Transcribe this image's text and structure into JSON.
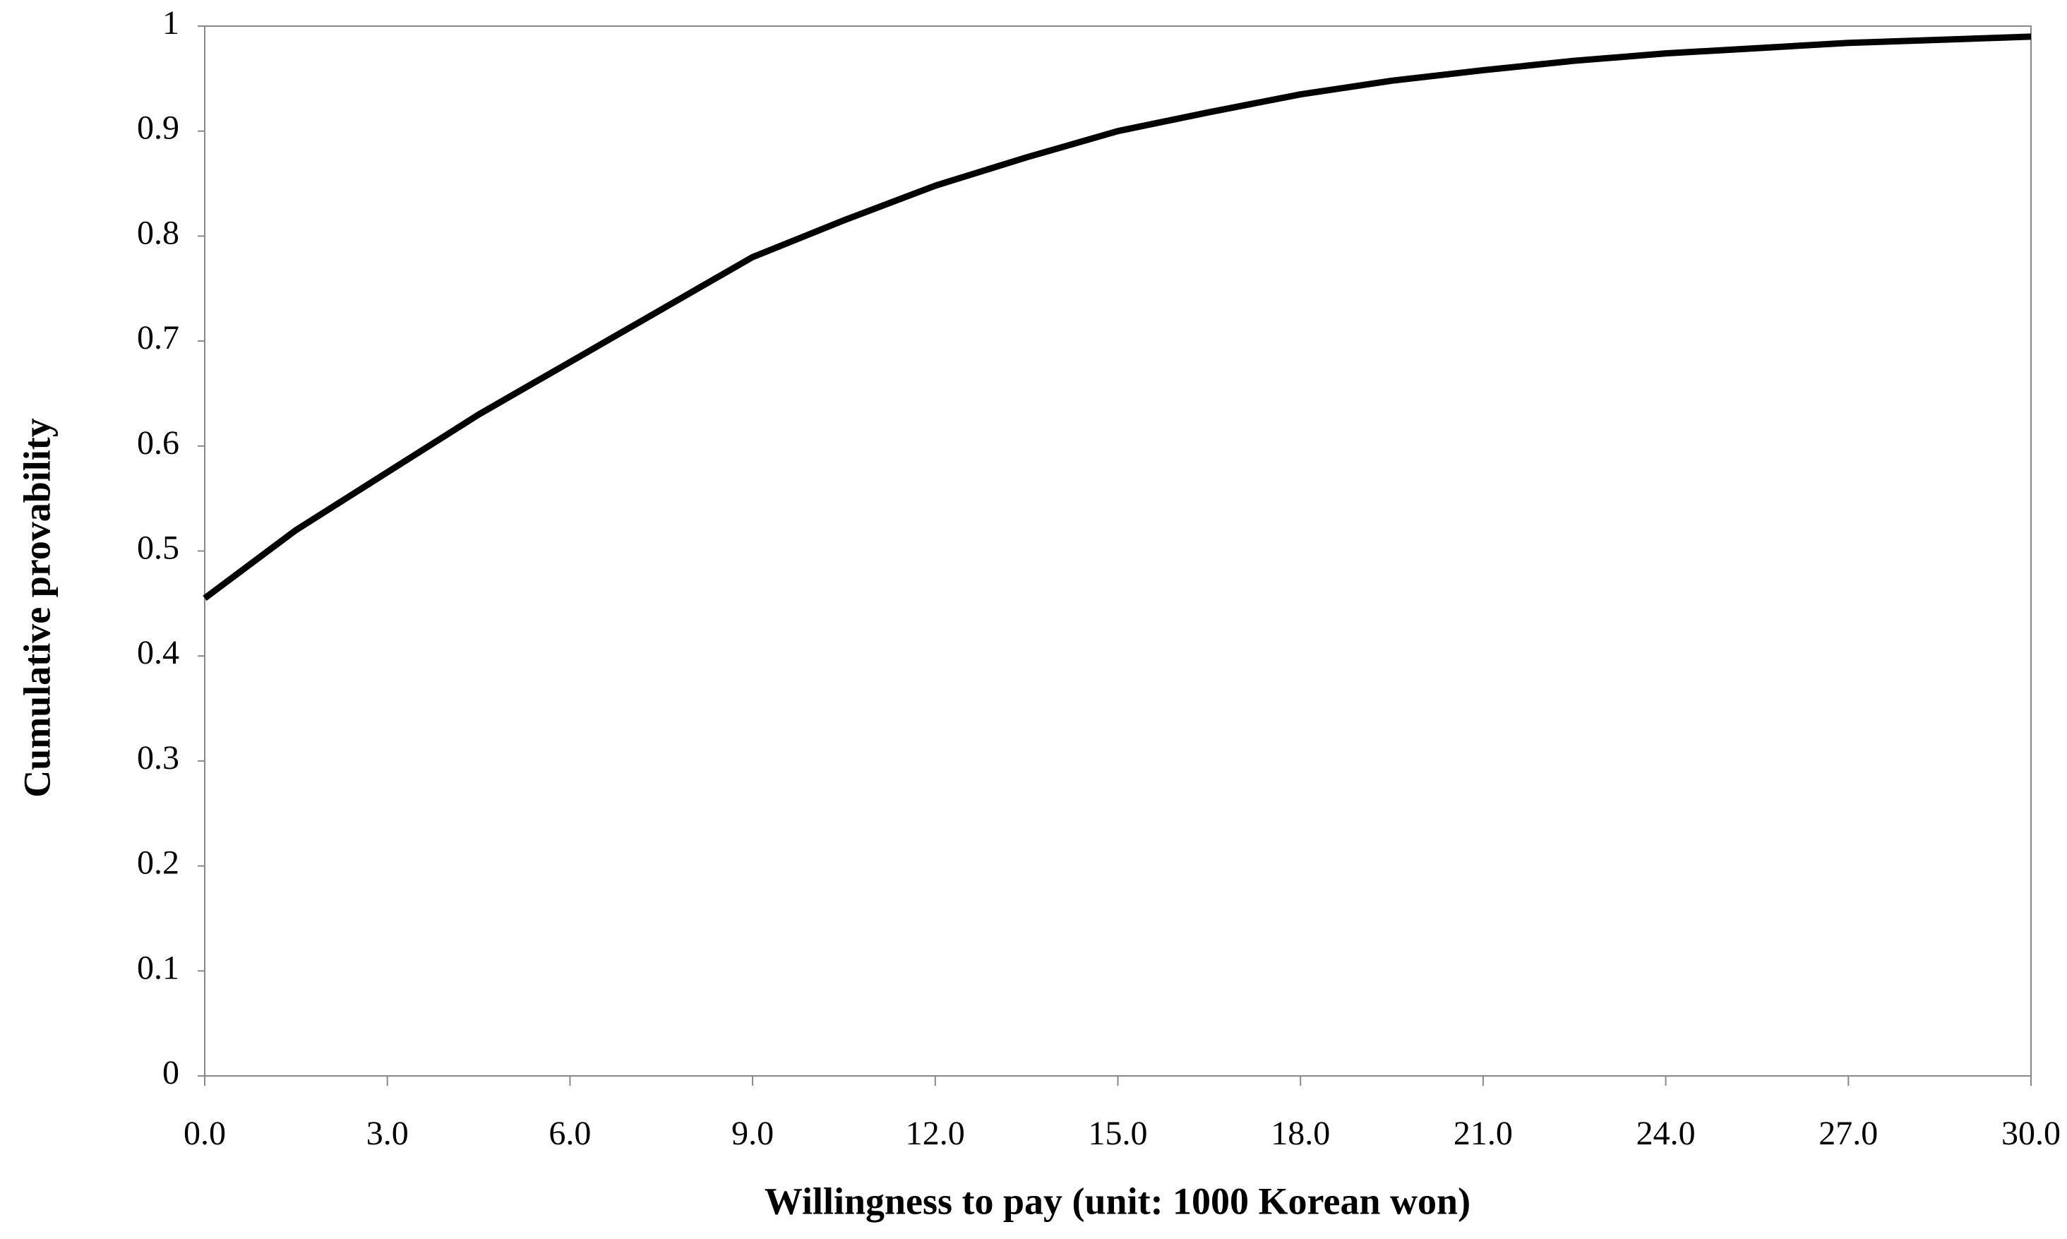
{
  "chart_data": {
    "type": "line",
    "x_label": "Willingness to pay (unit: 1000 Korean won)",
    "y_label": "Cumulative provability",
    "x": [
      0,
      1.5,
      3,
      4.5,
      6,
      7.5,
      9,
      10.5,
      12,
      13.5,
      15,
      16.5,
      18,
      19.5,
      21,
      22.5,
      24,
      25.5,
      27,
      28.5,
      30
    ],
    "series": [
      {
        "color": "#000000",
        "values": [
          0.455,
          0.52,
          0.575,
          0.63,
          0.68,
          0.73,
          0.78,
          0.815,
          0.848,
          0.875,
          0.9,
          0.918,
          0.935,
          0.948,
          0.958,
          0.967,
          0.974,
          0.979,
          0.984,
          0.987,
          0.99
        ]
      }
    ],
    "xlim": [
      0,
      30
    ],
    "ylim": [
      0,
      1
    ],
    "xticks": [
      {
        "value": 0,
        "label": "0.0"
      },
      {
        "value": 3,
        "label": "3.0"
      },
      {
        "value": 6,
        "label": "6.0"
      },
      {
        "value": 9,
        "label": "9.0"
      },
      {
        "value": 12,
        "label": "12.0"
      },
      {
        "value": 15,
        "label": "15.0"
      },
      {
        "value": 18,
        "label": "18.0"
      },
      {
        "value": 21,
        "label": "21.0"
      },
      {
        "value": 24,
        "label": "24.0"
      },
      {
        "value": 27,
        "label": "27.0"
      },
      {
        "value": 30,
        "label": "30.0"
      }
    ],
    "yticks": [
      0,
      0.1,
      0.2,
      0.3,
      0.4,
      0.5,
      0.6,
      0.7,
      0.8,
      0.9,
      1
    ]
  }
}
